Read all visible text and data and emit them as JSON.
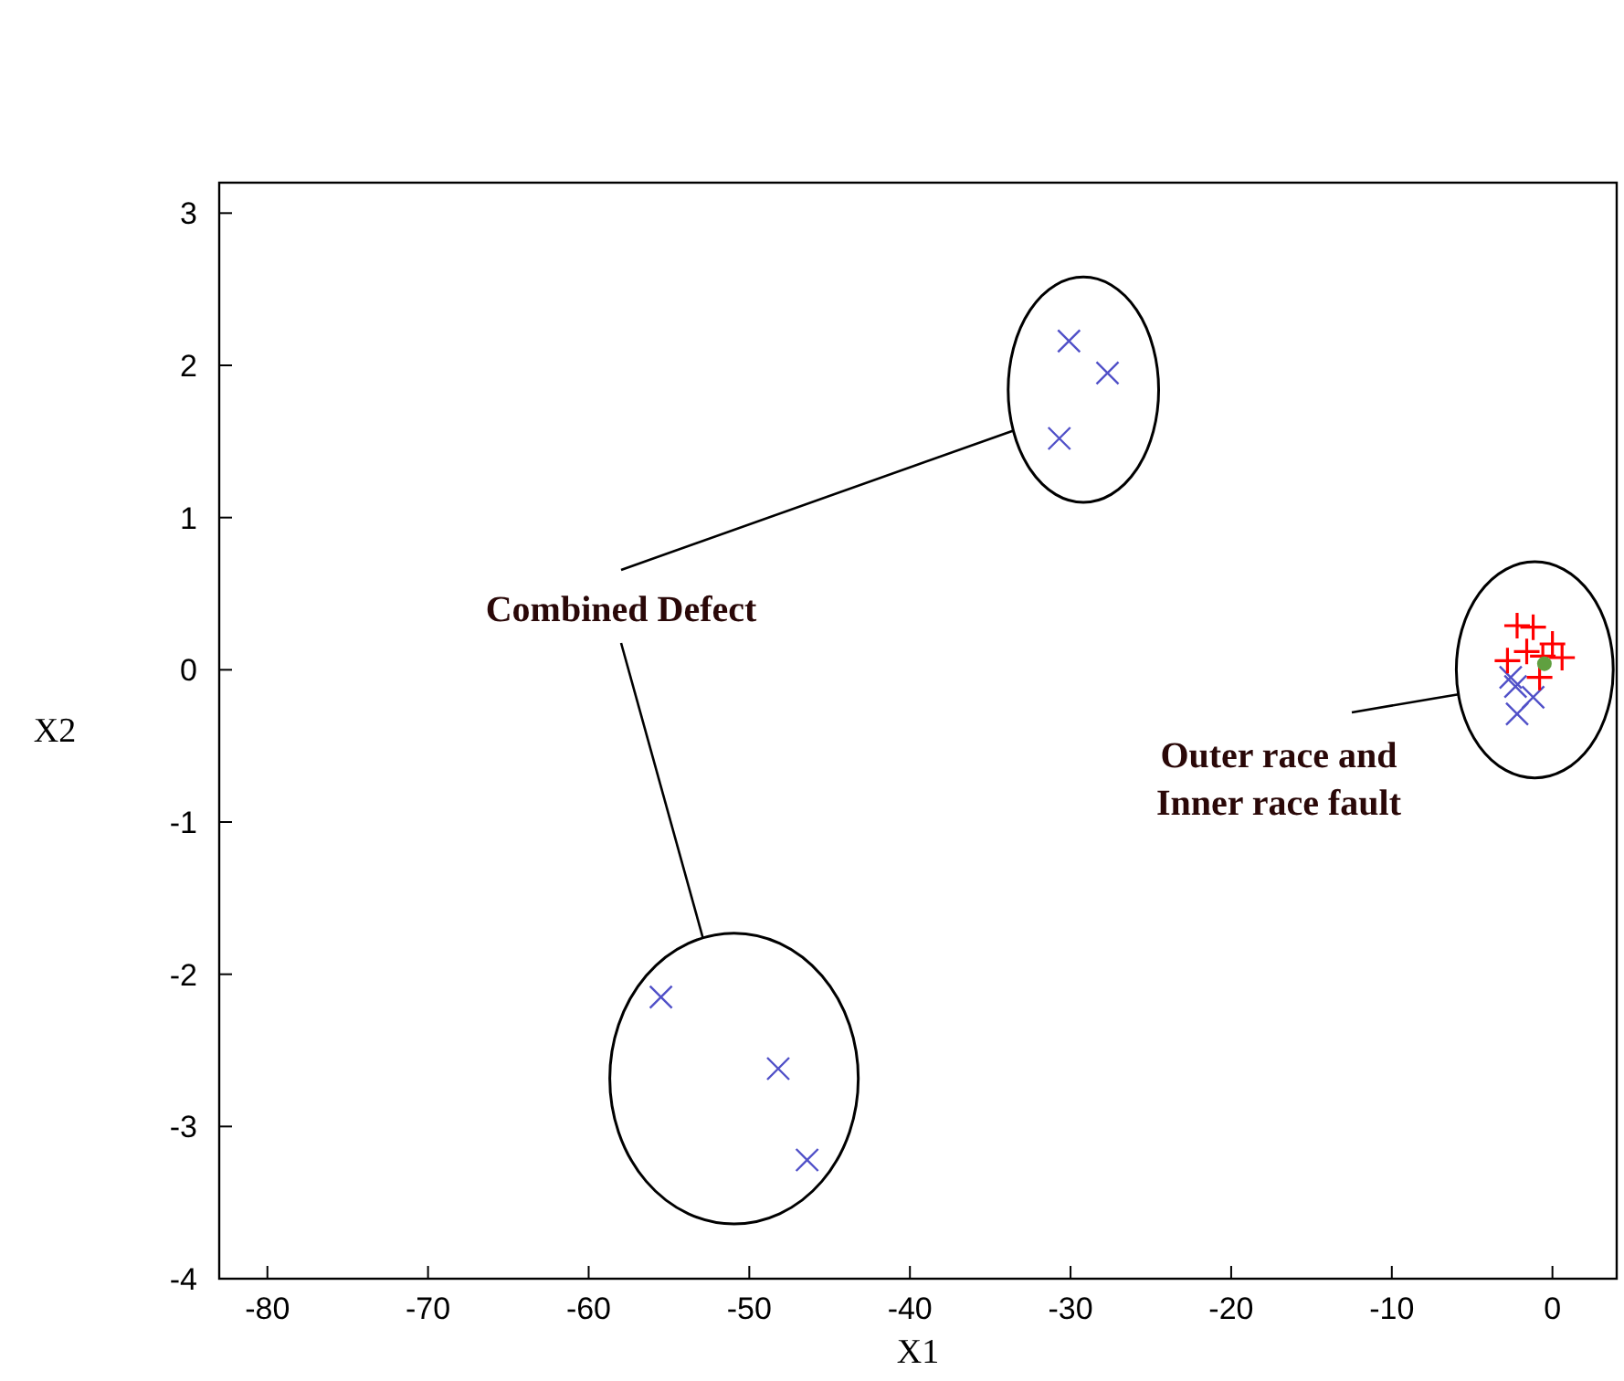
{
  "chart_data": {
    "type": "scatter",
    "xlabel": "X1",
    "ylabel": "X2",
    "xlim": [
      -83,
      4
    ],
    "xticks": [
      -80,
      -70,
      -60,
      -50,
      -40,
      -30,
      -20,
      -10,
      0
    ],
    "ylim": [
      -4,
      3.2
    ],
    "yticks": [
      -4,
      -3,
      -2,
      -1,
      0,
      1,
      2,
      3
    ],
    "grid": false,
    "series": [
      {
        "color": "#5050c8",
        "marker": "x",
        "x": [
          -30.1,
          -27.7,
          -30.7,
          -55.5,
          -48.2,
          -46.4,
          -2.3,
          -1.2,
          -2.2,
          -2.6
        ],
        "values": [
          2.16,
          1.95,
          1.52,
          -2.15,
          -2.62,
          -3.22,
          -0.11,
          -0.18,
          -0.29,
          -0.05
        ]
      },
      {
        "color": "#ff0000",
        "marker": "cross",
        "x": [
          -2.2,
          -1.2,
          -2.8,
          -1.6,
          -0.6,
          0.6,
          0.0,
          -0.8
        ],
        "values": [
          0.29,
          0.28,
          0.06,
          0.12,
          0.09,
          0.08,
          0.17,
          -0.05
        ]
      },
      {
        "color": "#60a040",
        "marker": "circle",
        "x": [
          -0.5
        ],
        "values": [
          0.04
        ]
      }
    ],
    "annotations": [
      "Combined Defect",
      "Outer race and\nInner race fault"
    ]
  }
}
